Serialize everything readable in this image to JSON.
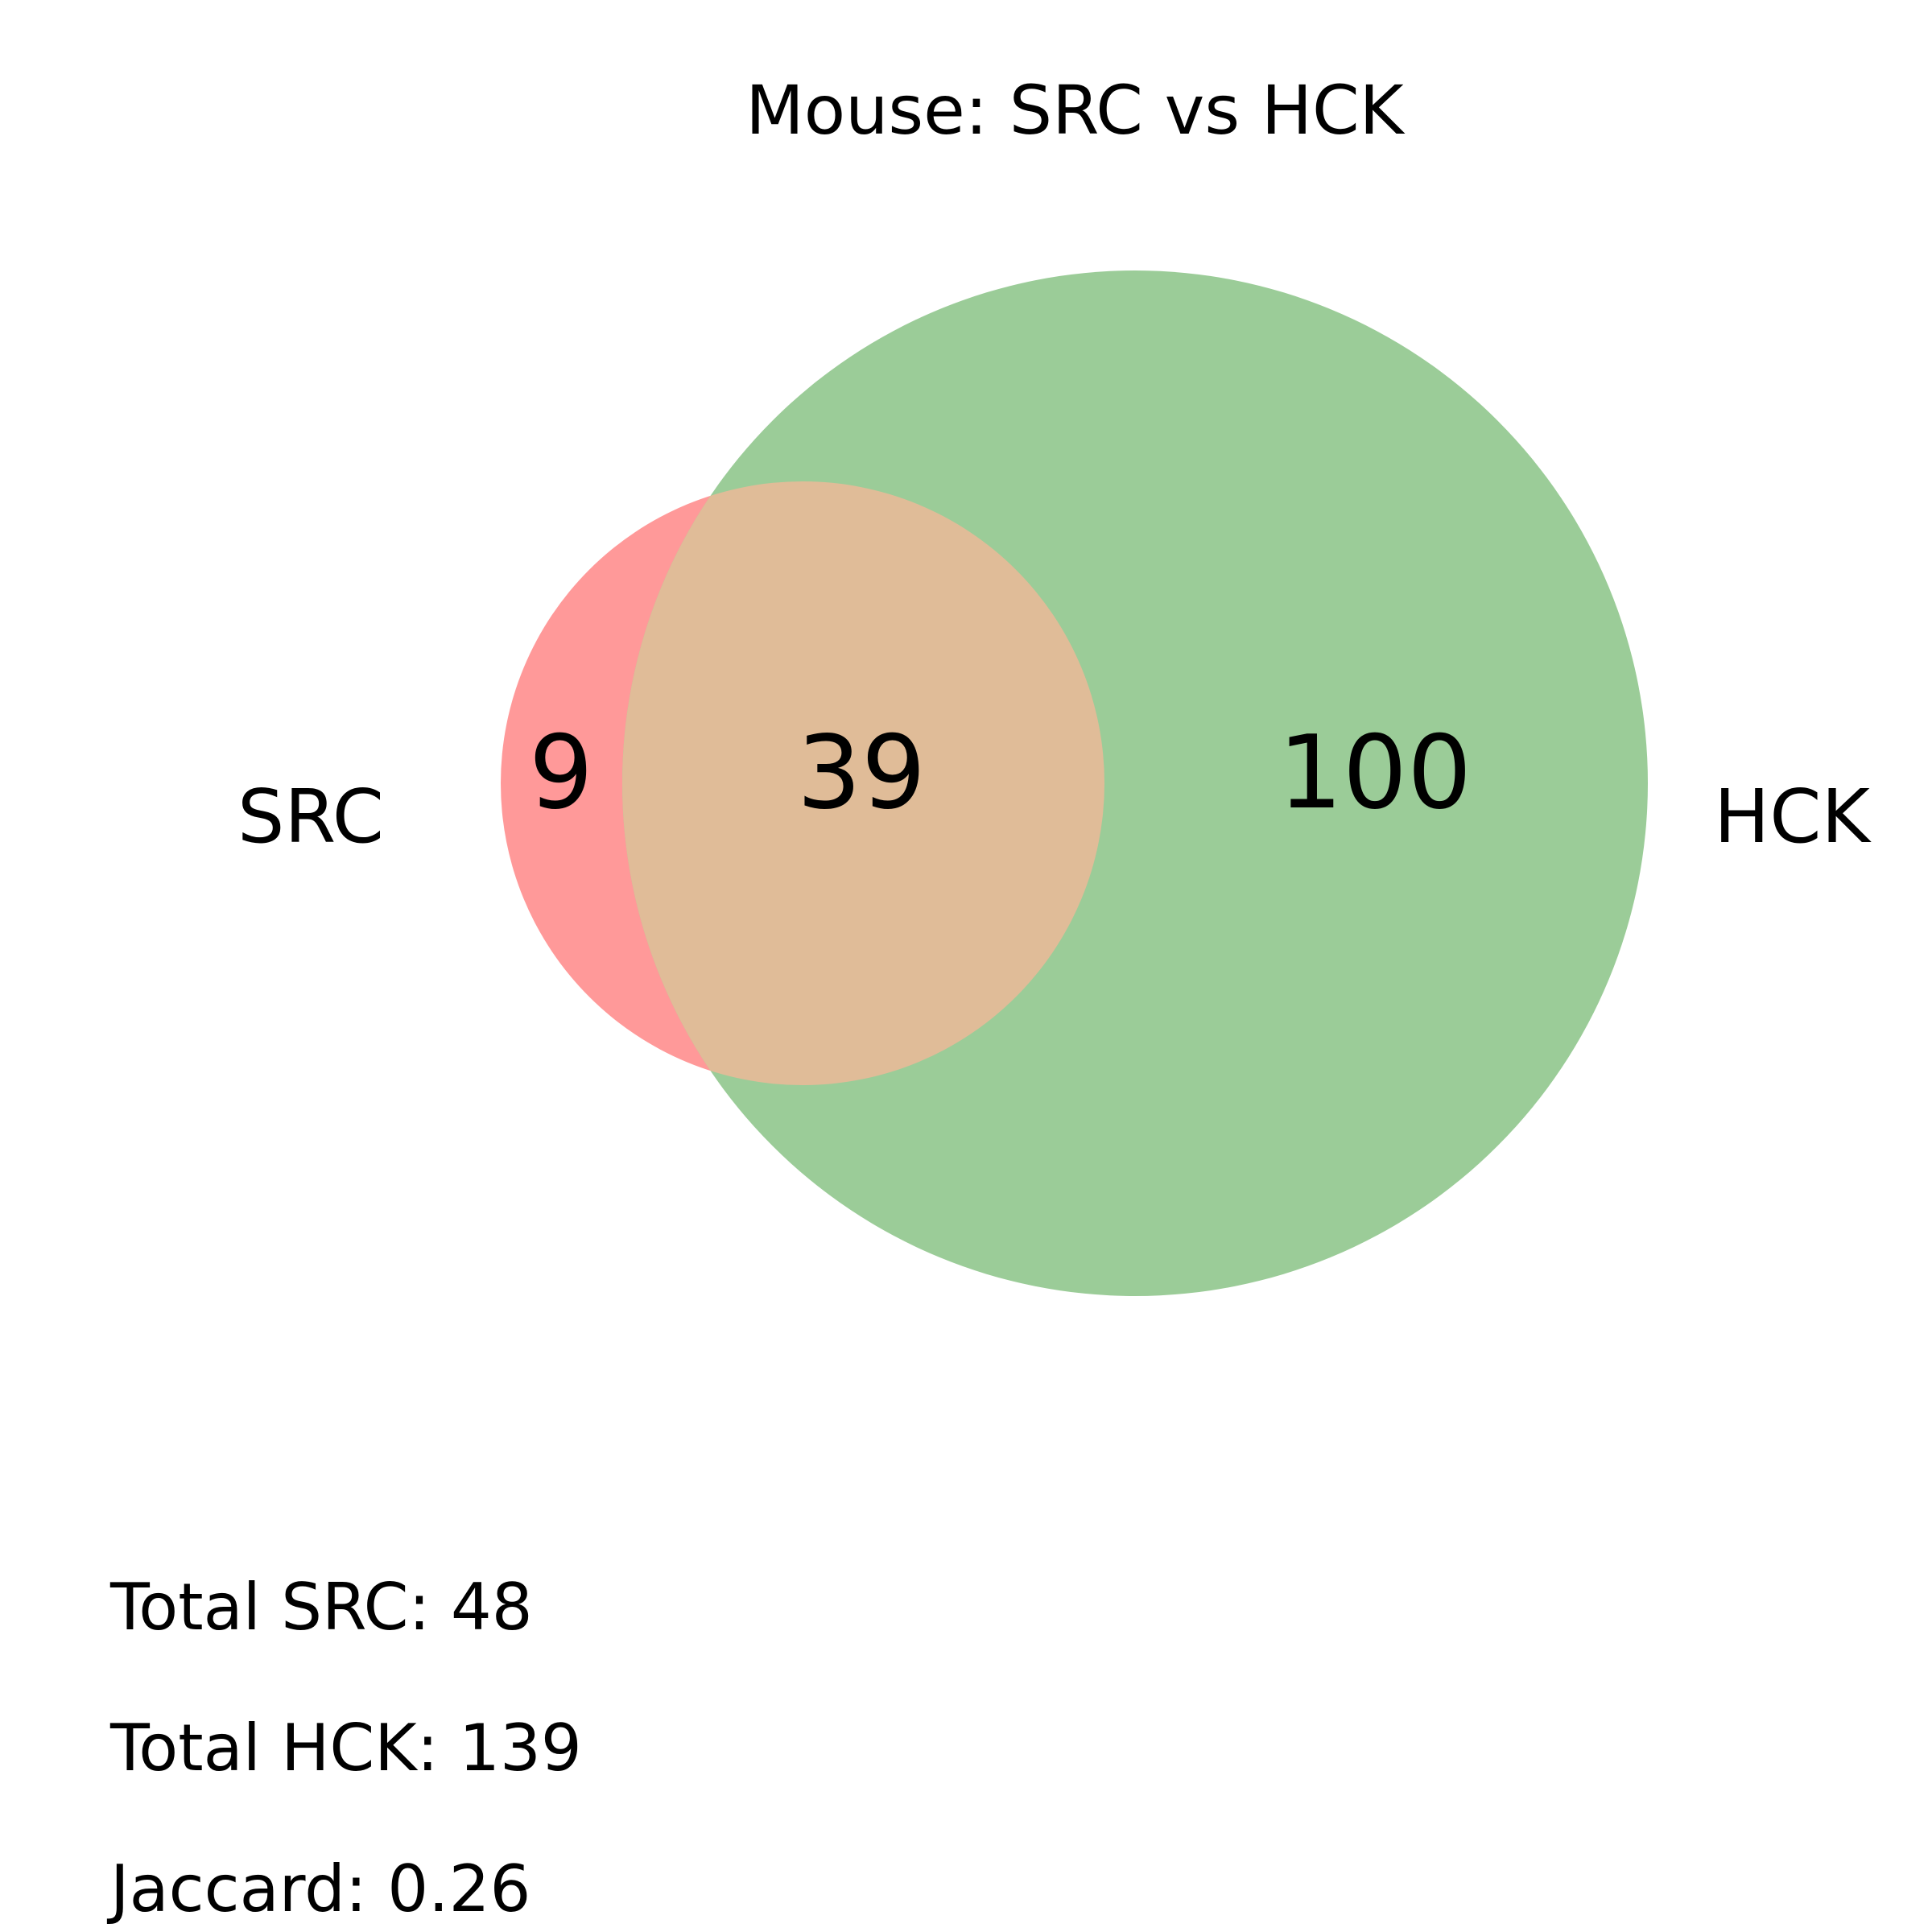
{
  "chart_data": {
    "type": "venn",
    "title": "Mouse: SRC vs HCK",
    "sets": [
      {
        "name": "SRC",
        "total": 48,
        "color": "#ff9999"
      },
      {
        "name": "HCK",
        "total": 139,
        "color": "#9bcc98"
      }
    ],
    "regions": {
      "only_a": 9,
      "intersection": 39,
      "only_b": 100
    },
    "intersection_color": "#e0bc98"
  },
  "stats": {
    "total_a": "Total SRC: 48",
    "total_b": "Total HCK: 139",
    "jaccard": "Jaccard: 0.26"
  }
}
